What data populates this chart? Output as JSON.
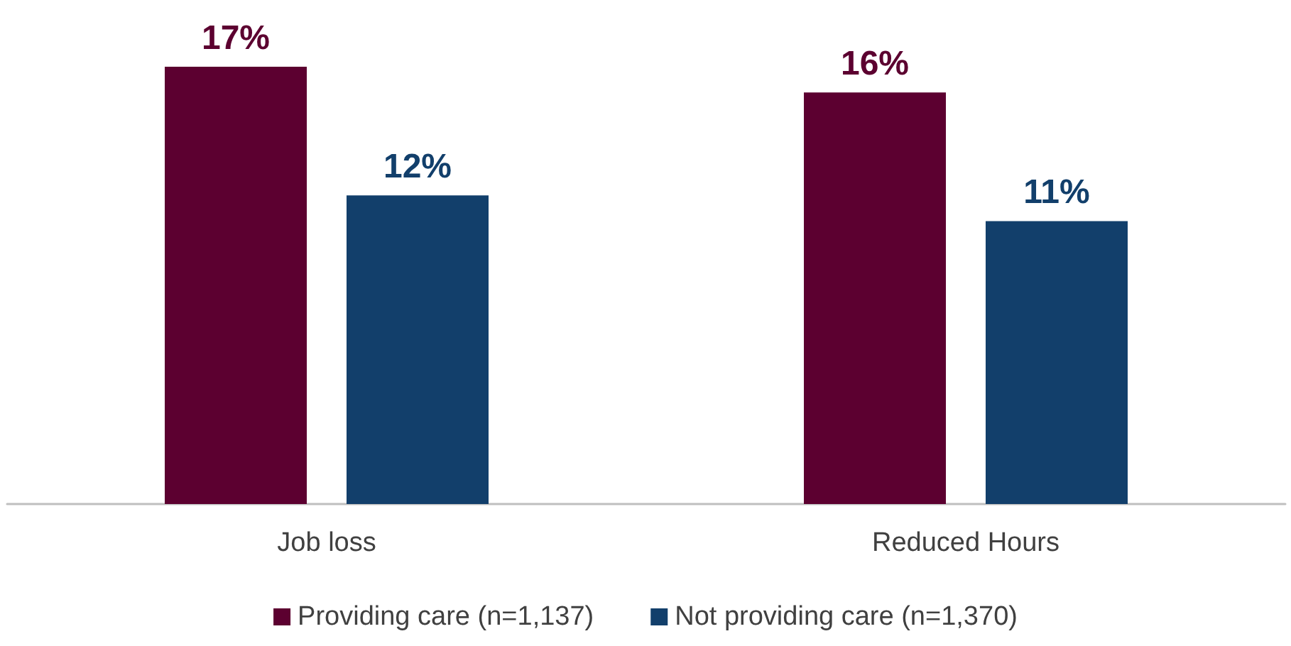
{
  "chart_data": {
    "type": "bar",
    "categories": [
      "Job loss",
      "Reduced Hours"
    ],
    "series": [
      {
        "name": "Providing care (n=1,137)",
        "color": "#5c0030",
        "values": [
          17,
          16
        ],
        "value_labels": [
          "17%",
          "16%"
        ]
      },
      {
        "name": "Not providing care (n=1,370)",
        "color": "#123f6b",
        "values": [
          12,
          11
        ],
        "value_labels": [
          "12%",
          "11%"
        ]
      }
    ],
    "legend": "bottom",
    "grid": false
  }
}
